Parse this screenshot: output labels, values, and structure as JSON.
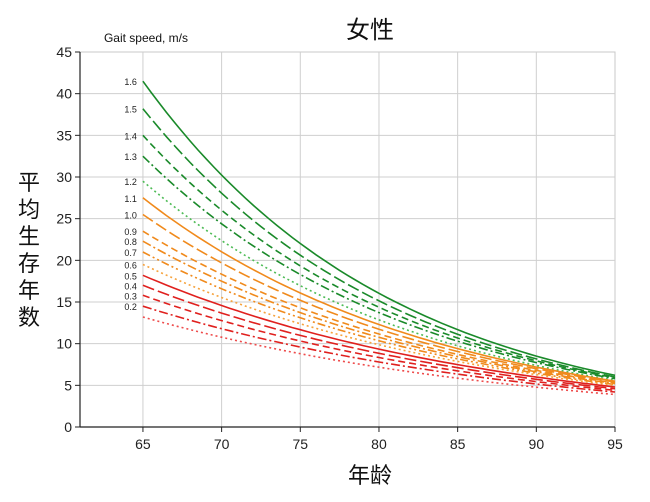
{
  "chart_data": {
    "type": "line",
    "title": "女性",
    "xlabel": "年龄",
    "ylabel": "平均生存年数",
    "legend_title": "Gait speed, m/s",
    "xlim": [
      61,
      95
    ],
    "ylim": [
      0,
      45
    ],
    "x_ticks": [
      65,
      70,
      75,
      80,
      85,
      90,
      95
    ],
    "y_ticks": [
      0,
      5,
      10,
      15,
      20,
      25,
      30,
      35,
      40,
      45
    ],
    "grid": true,
    "x": [
      65,
      95
    ],
    "series": [
      {
        "name": "1.6",
        "values": [
          41.5,
          6.2
        ],
        "color": "#1a8a2a",
        "dash": "solid"
      },
      {
        "name": "1.5",
        "values": [
          38.2,
          6.0
        ],
        "color": "#1a8a2a",
        "dash": "long-dash"
      },
      {
        "name": "1.4",
        "values": [
          35.0,
          5.9
        ],
        "color": "#1a8a2a",
        "dash": "dash"
      },
      {
        "name": "1.3",
        "values": [
          32.5,
          5.8
        ],
        "color": "#1a8a2a",
        "dash": "dash-dot"
      },
      {
        "name": "1.2",
        "values": [
          29.5,
          5.6
        ],
        "color": "#4dbb55",
        "dash": "dotted"
      },
      {
        "name": "1.1",
        "values": [
          27.5,
          5.5
        ],
        "color": "#f08a1c",
        "dash": "solid"
      },
      {
        "name": "1.0",
        "values": [
          25.5,
          5.4
        ],
        "color": "#f08a1c",
        "dash": "long-dash"
      },
      {
        "name": "0.9",
        "values": [
          23.5,
          5.3
        ],
        "color": "#f08a1c",
        "dash": "dash"
      },
      {
        "name": "0.8",
        "values": [
          22.3,
          5.2
        ],
        "color": "#f08a1c",
        "dash": "dash-dot"
      },
      {
        "name": "0.7",
        "values": [
          21.0,
          5.1
        ],
        "color": "#f08a1c",
        "dash": "dash-dot-dot"
      },
      {
        "name": "0.6",
        "values": [
          19.5,
          5.0
        ],
        "color": "#f6a23c",
        "dash": "dotted"
      },
      {
        "name": "0.5",
        "values": [
          18.2,
          4.8
        ],
        "color": "#e0201e",
        "dash": "solid"
      },
      {
        "name": "0.4",
        "values": [
          17.0,
          4.6
        ],
        "color": "#e0201e",
        "dash": "long-dash"
      },
      {
        "name": "0.3",
        "values": [
          15.8,
          4.4
        ],
        "color": "#e0201e",
        "dash": "dash"
      },
      {
        "name": "0.2",
        "values": [
          14.5,
          4.2
        ],
        "color": "#e0201e",
        "dash": "dash-dot"
      },
      {
        "name": "",
        "values": [
          13.2,
          3.9
        ],
        "color": "#ee4b4b",
        "dash": "dotted"
      }
    ]
  }
}
